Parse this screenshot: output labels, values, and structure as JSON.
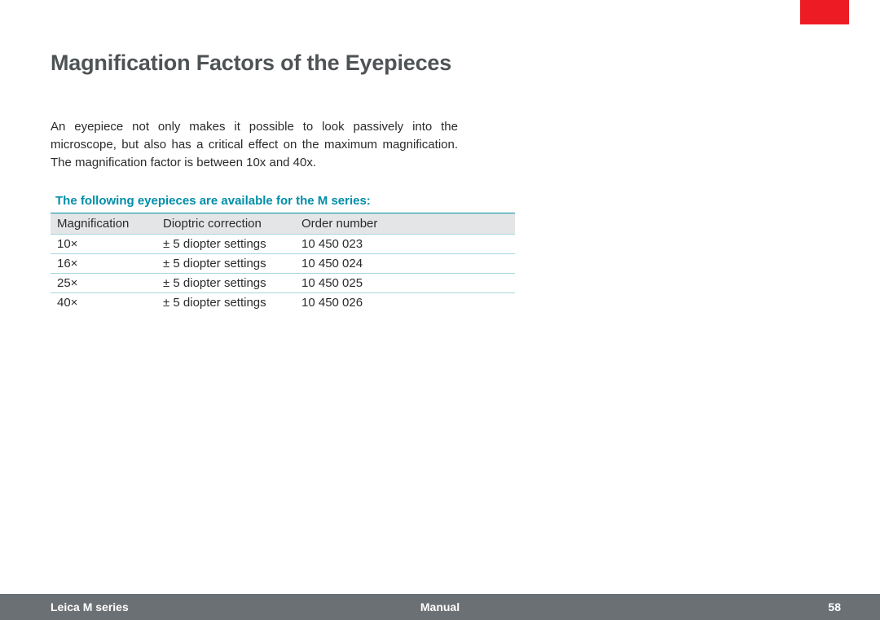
{
  "colors": {
    "logo_bg": "#ed1c24",
    "heading": "#4e5356",
    "caption": "#008da8",
    "caption_rule": "#008da8",
    "row_rule": "#a7d6df",
    "header_bg": "#e4e5e6",
    "footer_bg": "#6b7074",
    "body_text": "#2b2b2b"
  },
  "heading": "Magnification Factors of the Eyepieces",
  "intro": "An eyepiece not only makes it possible to look passively into the microscope, but also has a critical effect on the maximum magnification. The magnification factor is between 10x and 40x.",
  "table": {
    "caption": "The following eyepieces are available for the M series:",
    "columns": [
      "Magnification",
      "Dioptric correction",
      "Order number"
    ],
    "rows": [
      [
        "10×",
        "± 5 diopter settings",
        "10 450 023"
      ],
      [
        "16×",
        "± 5 diopter settings",
        "10 450 024"
      ],
      [
        "25×",
        "± 5 diopter settings",
        "10 450 025"
      ],
      [
        "40×",
        "± 5 diopter settings",
        "10 450 026"
      ]
    ]
  },
  "footer": {
    "left": "Leica M series",
    "center": "Manual",
    "page": "58"
  }
}
